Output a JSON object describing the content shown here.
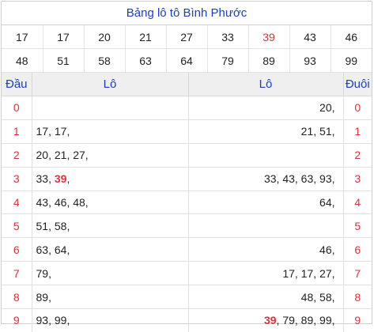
{
  "title": "Bảng lô tô Bình Phước",
  "numbers_row1": [
    "17",
    "17",
    "20",
    "21",
    "27",
    "33",
    "39",
    "43",
    "46"
  ],
  "numbers_row2": [
    "48",
    "51",
    "58",
    "63",
    "64",
    "79",
    "89",
    "93",
    "99"
  ],
  "highlight_number": "39",
  "headers": {
    "dau": "Đầu",
    "lo_left": "Lô",
    "lo_right": "Lô",
    "duoi": "Đuôi"
  },
  "rows": [
    {
      "digit": "0",
      "dau_lo": [],
      "duoi_lo": [
        "20"
      ]
    },
    {
      "digit": "1",
      "dau_lo": [
        "17",
        "17"
      ],
      "duoi_lo": [
        "21",
        "51"
      ]
    },
    {
      "digit": "2",
      "dau_lo": [
        "20",
        "21",
        "27"
      ],
      "duoi_lo": []
    },
    {
      "digit": "3",
      "dau_lo": [
        "33",
        "39"
      ],
      "duoi_lo": [
        "33",
        "43",
        "63",
        "93"
      ]
    },
    {
      "digit": "4",
      "dau_lo": [
        "43",
        "46",
        "48"
      ],
      "duoi_lo": [
        "64"
      ]
    },
    {
      "digit": "5",
      "dau_lo": [
        "51",
        "58"
      ],
      "duoi_lo": []
    },
    {
      "digit": "6",
      "dau_lo": [
        "63",
        "64"
      ],
      "duoi_lo": [
        "46"
      ]
    },
    {
      "digit": "7",
      "dau_lo": [
        "79"
      ],
      "duoi_lo": [
        "17",
        "17",
        "27"
      ]
    },
    {
      "digit": "8",
      "dau_lo": [
        "89"
      ],
      "duoi_lo": [
        "48",
        "58"
      ]
    },
    {
      "digit": "9",
      "dau_lo": [
        "93",
        "99"
      ],
      "duoi_lo": [
        "39",
        "79",
        "89",
        "99"
      ]
    }
  ],
  "colors": {
    "accent": "#1a3fc4",
    "highlight": "#e0303a",
    "header_bg": "#efefef"
  }
}
